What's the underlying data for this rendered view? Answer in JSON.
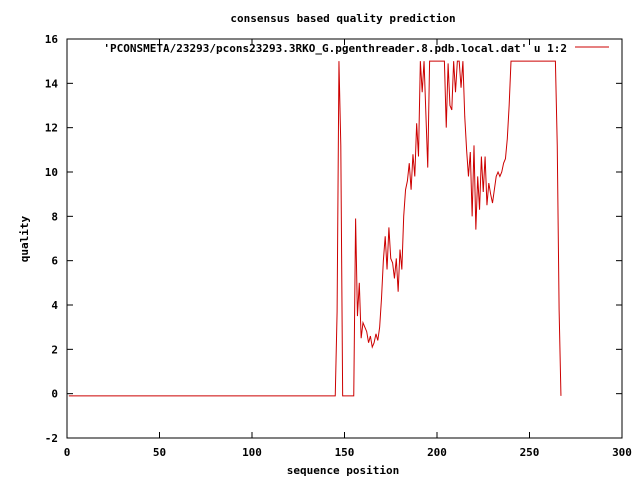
{
  "chart_data": {
    "type": "line",
    "title": "consensus based quality prediction",
    "xlabel": "sequence position",
    "ylabel": "quality",
    "xlim": [
      0,
      300
    ],
    "ylim": [
      -2,
      16
    ],
    "xticks": [
      0,
      50,
      100,
      150,
      200,
      250,
      300
    ],
    "yticks": [
      -2,
      0,
      2,
      4,
      6,
      8,
      10,
      12,
      14,
      16
    ],
    "grid": false,
    "legend": "top-right",
    "series": [
      {
        "name": "'PCONSMETA/23293/pcons23293.3RKO_G.pgenthreader.8.pdb.local.dat' u 1:2",
        "color": "#cc0000",
        "x": [
          1,
          145,
          146,
          147,
          148,
          149,
          150,
          151,
          152,
          153,
          154,
          155,
          156,
          157,
          158,
          159,
          160,
          161,
          162,
          163,
          164,
          165,
          166,
          167,
          168,
          169,
          170,
          171,
          172,
          173,
          174,
          175,
          176,
          177,
          178,
          179,
          180,
          181,
          182,
          183,
          184,
          185,
          186,
          187,
          188,
          189,
          190,
          191,
          192,
          193,
          194,
          195,
          196,
          197,
          198,
          199,
          200,
          201,
          202,
          203,
          204,
          205,
          206,
          207,
          208,
          209,
          210,
          211,
          212,
          213,
          214,
          215,
          216,
          217,
          218,
          219,
          220,
          221,
          222,
          223,
          224,
          225,
          226,
          227,
          228,
          229,
          230,
          231,
          232,
          233,
          234,
          235,
          236,
          237,
          238,
          239,
          240,
          241,
          242,
          243,
          244,
          245,
          246,
          247,
          248,
          249,
          250,
          255,
          260,
          264,
          265,
          266,
          267
        ],
        "y": [
          -0.1,
          -0.1,
          3.7,
          15.0,
          11.2,
          -0.1,
          -0.1,
          -0.1,
          -0.1,
          -0.1,
          -0.1,
          -0.1,
          7.9,
          3.5,
          5.0,
          2.5,
          3.2,
          3.0,
          2.8,
          2.3,
          2.6,
          2.1,
          2.3,
          2.7,
          2.4,
          3.0,
          4.3,
          6.0,
          7.1,
          5.6,
          7.5,
          6.1,
          5.9,
          5.2,
          6.1,
          4.6,
          6.5,
          5.6,
          8.0,
          9.2,
          9.6,
          10.4,
          9.2,
          10.8,
          9.8,
          12.2,
          10.7,
          15.0,
          13.6,
          15.0,
          12.6,
          10.2,
          15.0,
          15.0,
          15.0,
          15.0,
          15.0,
          15.0,
          15.0,
          15.0,
          15.0,
          12.0,
          14.9,
          13.0,
          12.8,
          15.0,
          13.6,
          15.0,
          15.0,
          13.8,
          15.0,
          12.5,
          11.0,
          9.8,
          10.9,
          8.0,
          11.2,
          7.4,
          9.8,
          8.3,
          10.7,
          9.1,
          10.7,
          8.5,
          9.5,
          9.0,
          8.6,
          9.2,
          9.8,
          10.0,
          9.8,
          10.0,
          10.4,
          10.6,
          11.5,
          13.0,
          15.0,
          15.0,
          15.0,
          15.0,
          15.0,
          15.0,
          15.0,
          15.0,
          15.0,
          15.0,
          15.0,
          15.0,
          15.0,
          15.0,
          11.2,
          3.8,
          -0.1
        ]
      }
    ]
  }
}
